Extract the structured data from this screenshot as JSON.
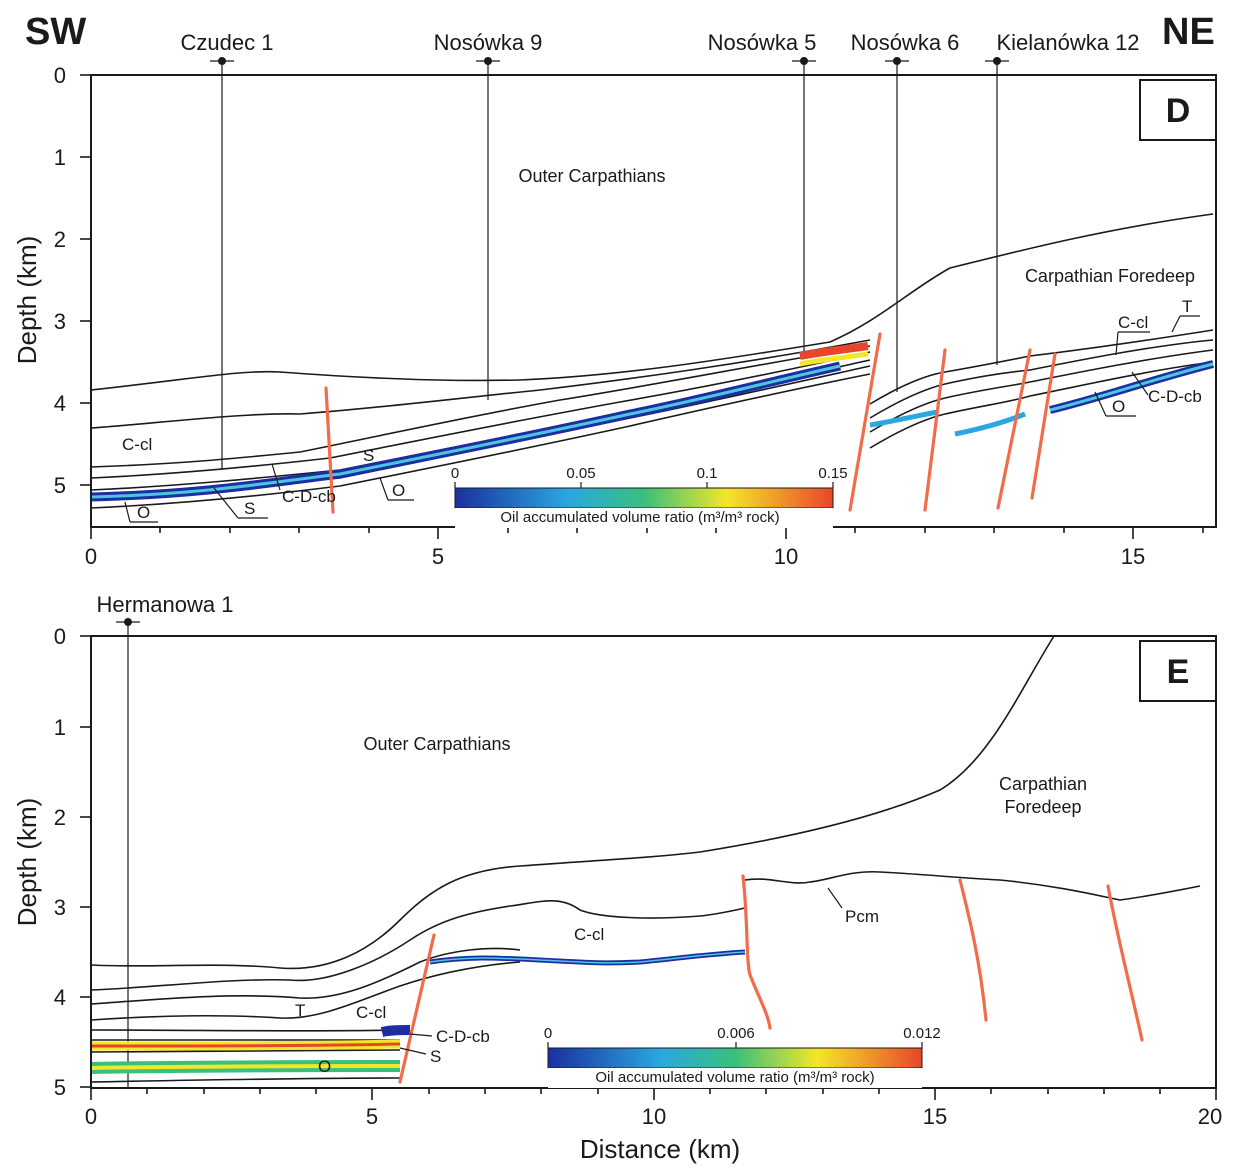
{
  "orientation": {
    "left": "SW",
    "right": "NE"
  },
  "panels": {
    "d": {
      "letter": "D",
      "wells": [
        "Czudec 1",
        "Nosówka 9",
        "Nosówka 5",
        "Nosówka 6",
        "Kielanówka 12"
      ],
      "regions": {
        "outer": "Outer Carpathians",
        "foredeep": "Carpathian Foredeep"
      },
      "labels": [
        "C-cl",
        "S",
        "O",
        "S",
        "C-D-cb",
        "O",
        "C-cl",
        "T",
        "C-D-cb",
        "O"
      ],
      "y_label": "Depth (km)",
      "y_ticks": [
        "0",
        "1",
        "2",
        "3",
        "4",
        "5"
      ],
      "x_ticks": [
        "0",
        "5",
        "10",
        "15"
      ],
      "colorbar": {
        "ticks": [
          "0",
          "0.05",
          "0.1",
          "0.15"
        ],
        "label": "Oil accumulated volume ratio (m³/m³ rock)"
      }
    },
    "e": {
      "letter": "E",
      "wells": [
        "Hermanowa 1"
      ],
      "regions": {
        "outer": "Outer Carpathians",
        "foredeep_1": "Carpathian",
        "foredeep_2": "Foredeep"
      },
      "labels": [
        "C-cl",
        "T",
        "C-cl",
        "C-D-cb",
        "S",
        "O",
        "Pcm"
      ],
      "y_label": "Depth (km)",
      "y_ticks": [
        "0",
        "1",
        "2",
        "3",
        "4",
        "5"
      ],
      "x_ticks": [
        "0",
        "5",
        "10",
        "15",
        "20"
      ],
      "x_label": "Distance (km)",
      "colorbar": {
        "ticks": [
          "0",
          "0.006",
          "0.012"
        ],
        "label": "Oil accumulated volume ratio (m³/m³ rock)"
      }
    }
  },
  "colors": {
    "fault": "#f26b4a",
    "oil_low": "#1b2fa0",
    "oil_mid": "#4dc4e0",
    "oil_high": "#e8462a"
  }
}
